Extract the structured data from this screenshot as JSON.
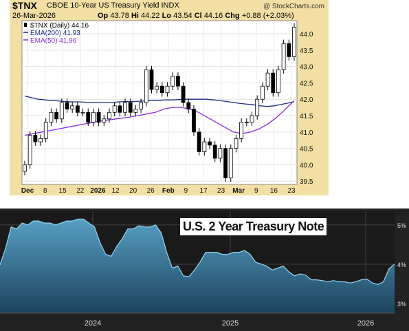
{
  "top": {
    "symbol": "$TNX",
    "description": "CBOE 10-Year US Treasury Yield INDX",
    "watermark": "@ StockCharts.com",
    "date": "26-Mar-2026",
    "ohlc": {
      "o_label": "Op",
      "o": "43.78",
      "h_label": "Hi",
      "h": "44.22",
      "l_label": "Lo",
      "l": "43.54",
      "c_label": "Cl",
      "c": "44.16",
      "chg_label": "Chg",
      "chg": "+0.88 (+2.03%)"
    }
  },
  "chart_data": [
    {
      "type": "candlestick",
      "title": "$TNX CBOE 10-Year US Treasury Yield INDX",
      "ylim": [
        39.4,
        44.4
      ],
      "y_ticks": [
        39.5,
        40.0,
        40.5,
        41.0,
        41.5,
        42.0,
        42.5,
        43.0,
        43.5,
        44.0
      ],
      "x_ticks": [
        "Dec",
        "8",
        "15",
        "22",
        "2026",
        "12",
        "20",
        "26",
        "Feb",
        "9",
        "17",
        "23",
        "Mar",
        "9",
        "16",
        "23"
      ],
      "legend": [
        {
          "name": "$TNX (Daily) 44.16",
          "color": "#000000"
        },
        {
          "name": "EMA(200) 41.93",
          "color": "#1a2a80"
        },
        {
          "name": "EMA(50) 41.96",
          "color": "#8a2be2"
        }
      ],
      "closes": [
        40.0,
        40.9,
        40.7,
        40.8,
        41.3,
        41.6,
        41.4,
        41.9,
        41.7,
        41.8,
        41.6,
        41.6,
        41.3,
        41.6,
        41.3,
        41.4,
        41.6,
        41.8,
        41.6,
        41.9,
        41.6,
        41.7,
        41.9,
        42.9,
        42.3,
        42.4,
        42.2,
        42.4,
        42.7,
        42.4,
        41.9,
        41.7,
        41.0,
        40.4,
        40.7,
        40.6,
        40.2,
        40.5,
        39.6,
        40.5,
        40.8,
        41.3,
        41.3,
        41.5,
        42.0,
        42.4,
        42.8,
        42.2,
        42.9,
        43.7,
        43.3,
        44.2
      ],
      "ema200": [
        42.1,
        42.05,
        42.0,
        41.98,
        41.96,
        41.95,
        41.93,
        41.92,
        41.92,
        41.91,
        41.9,
        41.9,
        41.9,
        41.9,
        41.92,
        41.93,
        41.93,
        41.94,
        41.95,
        41.96,
        41.97,
        41.98,
        41.98,
        41.99,
        42.0,
        42.0,
        42.0,
        42.0,
        41.98,
        41.96,
        41.93,
        41.9,
        41.87,
        41.85,
        41.83,
        41.8,
        41.78,
        41.8,
        41.84,
        41.88,
        41.93
      ],
      "ema50": [
        40.9,
        40.95,
        41.0,
        41.05,
        41.1,
        41.15,
        41.2,
        41.25,
        41.3,
        41.35,
        41.38,
        41.42,
        41.45,
        41.5,
        41.55,
        41.6,
        41.7,
        41.75,
        41.75,
        41.7,
        41.6,
        41.45,
        41.3,
        41.15,
        41.0,
        40.95,
        41.0,
        41.1,
        41.25,
        41.45,
        41.7,
        41.96
      ]
    },
    {
      "type": "area",
      "title": "U.S. 2 Year Treasury Note",
      "y_ticks": [
        "5%",
        "4%",
        "3%"
      ],
      "x_ticks": [
        "2024",
        "2025",
        "2026"
      ],
      "values": [
        3.98,
        4.4,
        4.95,
        4.9,
        5.05,
        5.0,
        5.1,
        5.1,
        5.05,
        5.05,
        5.0,
        5.05,
        5.1,
        5.1,
        5.15,
        5.15,
        5.05,
        4.95,
        4.55,
        4.25,
        4.2,
        4.45,
        4.65,
        4.9,
        4.9,
        4.98,
        4.95,
        4.95,
        5.0,
        4.8,
        4.3,
        3.9,
        3.95,
        3.7,
        3.68,
        3.85,
        4.05,
        4.3,
        4.3,
        4.3,
        4.25,
        4.25,
        4.3,
        4.3,
        4.35,
        4.25,
        4.05,
        4.0,
        3.95,
        3.85,
        3.9,
        3.95,
        3.8,
        3.7,
        3.75,
        3.72,
        3.6,
        3.6,
        3.58,
        3.55,
        3.58,
        3.55,
        3.55,
        3.52,
        3.55,
        3.6,
        3.62,
        3.52,
        3.48,
        3.55,
        3.88,
        4.0
      ]
    }
  ],
  "bottom": {
    "title": "U.S. 2 Year Treasury Note"
  }
}
